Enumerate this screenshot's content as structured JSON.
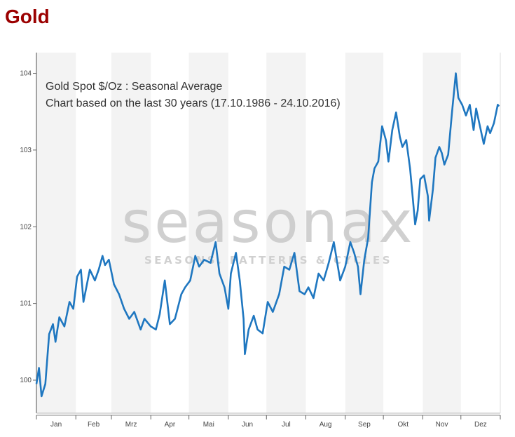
{
  "page_title": "Gold",
  "chart_data": {
    "type": "line",
    "title": "Gold Spot   $/Oz : Seasonal Average",
    "subtitle": "Chart based on the last 30 years (17.10.1986 - 24.10.2016)",
    "watermark": {
      "logo": "seasonax",
      "tagline": "SEASONS, PATTERNS & CYCLES"
    },
    "xlabel": "",
    "ylabel": "",
    "x_ticks": [
      "Jan",
      "Feb",
      "Mrz",
      "Apr",
      "Mai",
      "Jun",
      "Jul",
      "Aug",
      "Sep",
      "Okt",
      "Nov",
      "Dez"
    ],
    "y_ticks": [
      100,
      101,
      102,
      103,
      104
    ],
    "ylim": [
      99.57,
      104.27
    ],
    "grid": "alternating month bands",
    "colors": {
      "line": "#1f77c0",
      "band": "#f3f3f3"
    },
    "series": [
      {
        "points": [
          [
            "01-01",
            99.95
          ],
          [
            "01-03",
            100.16
          ],
          [
            "01-05",
            99.79
          ],
          [
            "01-08",
            99.95
          ],
          [
            "01-11",
            100.6
          ],
          [
            "01-14",
            100.73
          ],
          [
            "01-16",
            100.5
          ],
          [
            "01-19",
            100.82
          ],
          [
            "01-23",
            100.7
          ],
          [
            "01-27",
            101.02
          ],
          [
            "01-30",
            100.93
          ],
          [
            "02-02",
            101.35
          ],
          [
            "02-05",
            101.44
          ],
          [
            "02-07",
            101.02
          ],
          [
            "02-12",
            101.44
          ],
          [
            "02-16",
            101.3
          ],
          [
            "02-19",
            101.44
          ],
          [
            "02-22",
            101.62
          ],
          [
            "02-24",
            101.5
          ],
          [
            "02-27",
            101.57
          ],
          [
            "03-03",
            101.25
          ],
          [
            "03-07",
            101.12
          ],
          [
            "03-11",
            100.93
          ],
          [
            "03-15",
            100.8
          ],
          [
            "03-19",
            100.89
          ],
          [
            "03-24",
            100.66
          ],
          [
            "03-27",
            100.8
          ],
          [
            "04-01",
            100.7
          ],
          [
            "04-05",
            100.66
          ],
          [
            "04-08",
            100.86
          ],
          [
            "04-12",
            101.3
          ],
          [
            "04-16",
            100.73
          ],
          [
            "04-20",
            100.8
          ],
          [
            "04-25",
            101.12
          ],
          [
            "04-28",
            101.21
          ],
          [
            "05-02",
            101.3
          ],
          [
            "05-06",
            101.62
          ],
          [
            "05-09",
            101.48
          ],
          [
            "05-13",
            101.57
          ],
          [
            "05-18",
            101.53
          ],
          [
            "05-22",
            101.8
          ],
          [
            "05-25",
            101.39
          ],
          [
            "05-29",
            101.21
          ],
          [
            "06-01",
            100.93
          ],
          [
            "06-03",
            101.39
          ],
          [
            "06-07",
            101.66
          ],
          [
            "06-10",
            101.3
          ],
          [
            "06-13",
            100.8
          ],
          [
            "06-14",
            100.34
          ],
          [
            "06-17",
            100.66
          ],
          [
            "06-21",
            100.84
          ],
          [
            "06-24",
            100.66
          ],
          [
            "06-28",
            100.61
          ],
          [
            "07-02",
            101.02
          ],
          [
            "07-06",
            100.89
          ],
          [
            "07-11",
            101.12
          ],
          [
            "07-15",
            101.48
          ],
          [
            "07-19",
            101.44
          ],
          [
            "07-23",
            101.66
          ],
          [
            "07-27",
            101.16
          ],
          [
            "07-31",
            101.12
          ],
          [
            "08-03",
            101.21
          ],
          [
            "08-07",
            101.07
          ],
          [
            "08-11",
            101.39
          ],
          [
            "08-15",
            101.3
          ],
          [
            "08-19",
            101.53
          ],
          [
            "08-23",
            101.8
          ],
          [
            "08-28",
            101.3
          ],
          [
            "09-01",
            101.48
          ],
          [
            "09-05",
            101.8
          ],
          [
            "09-08",
            101.66
          ],
          [
            "09-11",
            101.48
          ],
          [
            "09-13",
            101.12
          ],
          [
            "09-16",
            101.57
          ],
          [
            "09-19",
            101.85
          ],
          [
            "09-22",
            102.58
          ],
          [
            "09-24",
            102.76
          ],
          [
            "09-27",
            102.85
          ],
          [
            "09-30",
            103.31
          ],
          [
            "10-03",
            103.13
          ],
          [
            "10-05",
            102.85
          ],
          [
            "10-08",
            103.26
          ],
          [
            "10-11",
            103.49
          ],
          [
            "10-14",
            103.17
          ],
          [
            "10-16",
            103.04
          ],
          [
            "10-19",
            103.13
          ],
          [
            "10-22",
            102.76
          ],
          [
            "10-24",
            102.4
          ],
          [
            "10-26",
            102.03
          ],
          [
            "10-28",
            102.21
          ],
          [
            "10-30",
            102.62
          ],
          [
            "11-02",
            102.67
          ],
          [
            "11-05",
            102.4
          ],
          [
            "11-06",
            102.08
          ],
          [
            "11-09",
            102.49
          ],
          [
            "11-11",
            102.9
          ],
          [
            "11-14",
            103.04
          ],
          [
            "11-16",
            102.96
          ],
          [
            "11-18",
            102.81
          ],
          [
            "11-21",
            102.94
          ],
          [
            "11-24",
            103.49
          ],
          [
            "11-27",
            104.0
          ],
          [
            "11-29",
            103.68
          ],
          [
            "12-02",
            103.59
          ],
          [
            "12-05",
            103.45
          ],
          [
            "12-08",
            103.59
          ],
          [
            "12-11",
            103.26
          ],
          [
            "12-13",
            103.54
          ],
          [
            "12-16",
            103.31
          ],
          [
            "12-19",
            103.08
          ],
          [
            "12-22",
            103.31
          ],
          [
            "12-24",
            103.22
          ],
          [
            "12-27",
            103.35
          ],
          [
            "12-30",
            103.59
          ],
          [
            "12-31",
            103.57
          ]
        ]
      }
    ]
  }
}
